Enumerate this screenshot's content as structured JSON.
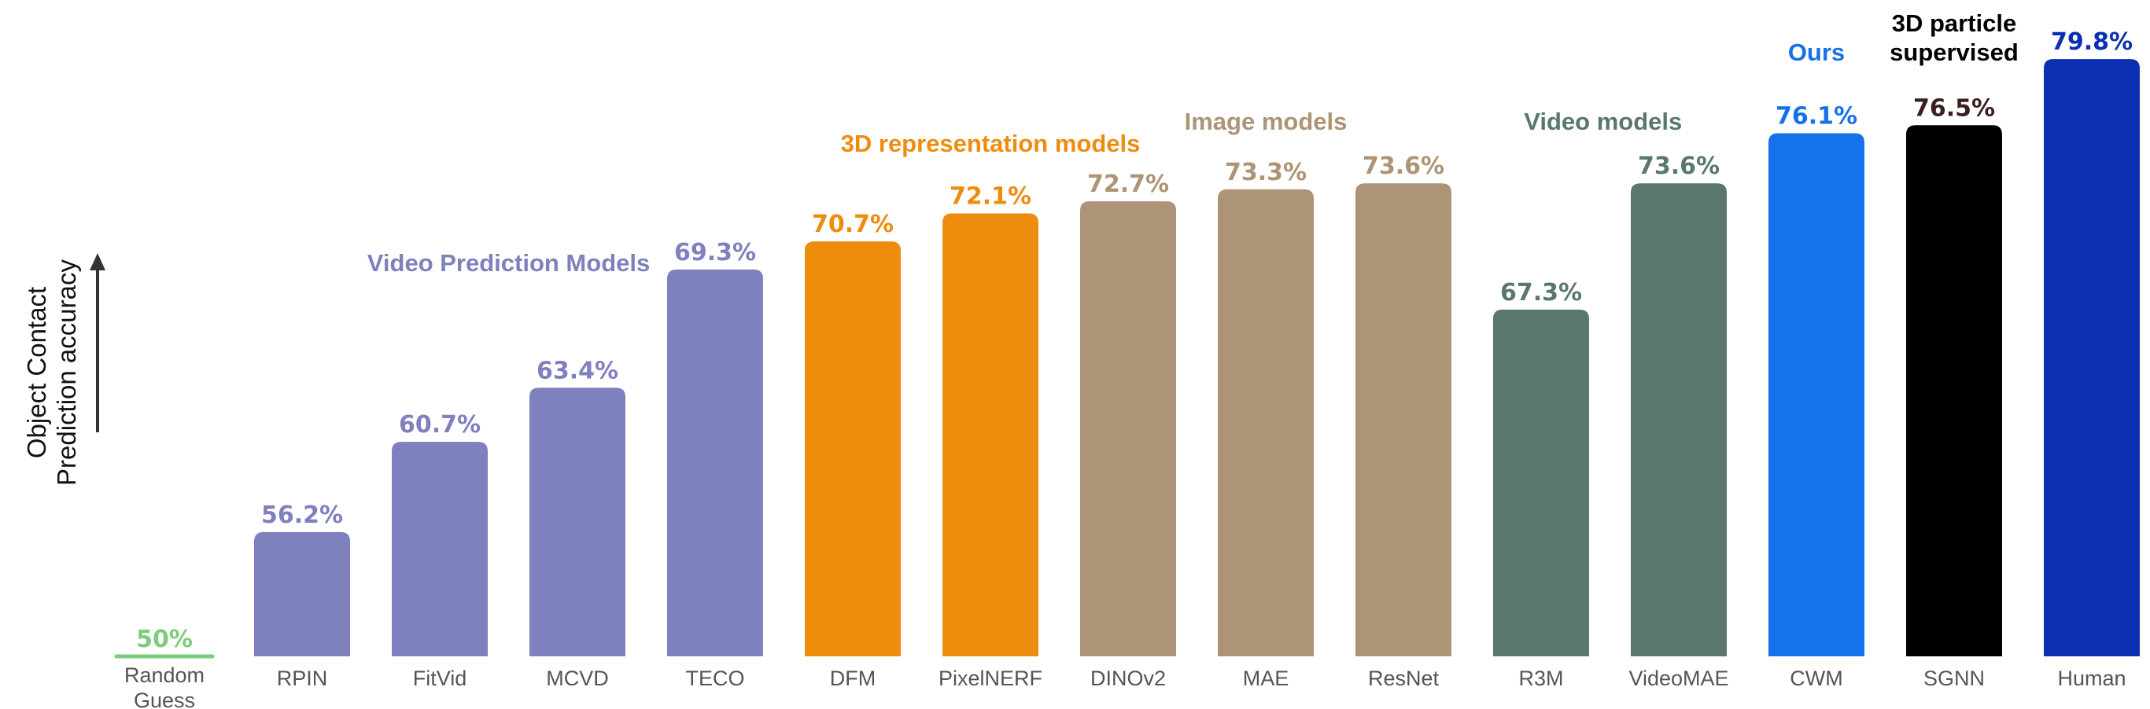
{
  "chart_data": {
    "type": "bar",
    "ylabel": [
      "Object Contact",
      "Prediction accuracy"
    ],
    "ylim": [
      50,
      80
    ],
    "grid": false,
    "categories": [
      "Random Guess",
      "RPIN",
      "FitVid",
      "MCVD",
      "TECO",
      "DFM",
      "PixelNERF",
      "DINOv2",
      "MAE",
      "ResNet",
      "R3M",
      "VideoMAE",
      "CWM",
      "SGNN",
      "Human"
    ],
    "values": [
      50,
      56.2,
      60.7,
      63.4,
      69.3,
      70.7,
      72.1,
      72.7,
      73.3,
      73.6,
      67.3,
      73.6,
      76.1,
      76.5,
      79.8
    ],
    "value_labels": [
      "50%",
      "56.2%",
      "60.7%",
      "63.4%",
      "69.3%",
      "70.7%",
      "72.1%",
      "72.7%",
      "73.3%",
      "73.6%",
      "67.3%",
      "73.6%",
      "76.1%",
      "76.5%",
      "79.8%"
    ],
    "bar_colors": [
      "#7dcc7d",
      "#7f80be",
      "#7f80be",
      "#7f80be",
      "#7f80be",
      "#ee8c0e",
      "#ee8c0e",
      "#ad9476",
      "#ad9476",
      "#ad9476",
      "#59776e",
      "#59776e",
      "#1572ea",
      "#000000",
      "#0b2fb3"
    ],
    "label_colors": [
      "#7dcc7d",
      "#7f80be",
      "#7f80be",
      "#7f80be",
      "#7f80be",
      "#ee8c0e",
      "#ee8c0e",
      "#ad9476",
      "#ad9476",
      "#ad9476",
      "#59776e",
      "#59776e",
      "#1572ea",
      "#3a1f1f",
      "#0b2fb3"
    ],
    "group_labels": [
      {
        "text": [
          "Video Prediction Models"
        ],
        "color": "#7f80be",
        "at": 2.5
      },
      {
        "text": [
          "3D representation models"
        ],
        "color": "#ee8c0e",
        "at": 6.0
      },
      {
        "text": [
          "Image models"
        ],
        "color": "#ad9476",
        "at": 8.0
      },
      {
        "text": [
          "Video models"
        ],
        "color": "#59776e",
        "at": 10.45
      },
      {
        "text": [
          "Ours"
        ],
        "color": "#1572ea",
        "at": 12.0
      },
      {
        "text": [
          "3D particle",
          "supervised"
        ],
        "color": "#000000",
        "at": 13.0
      }
    ]
  }
}
